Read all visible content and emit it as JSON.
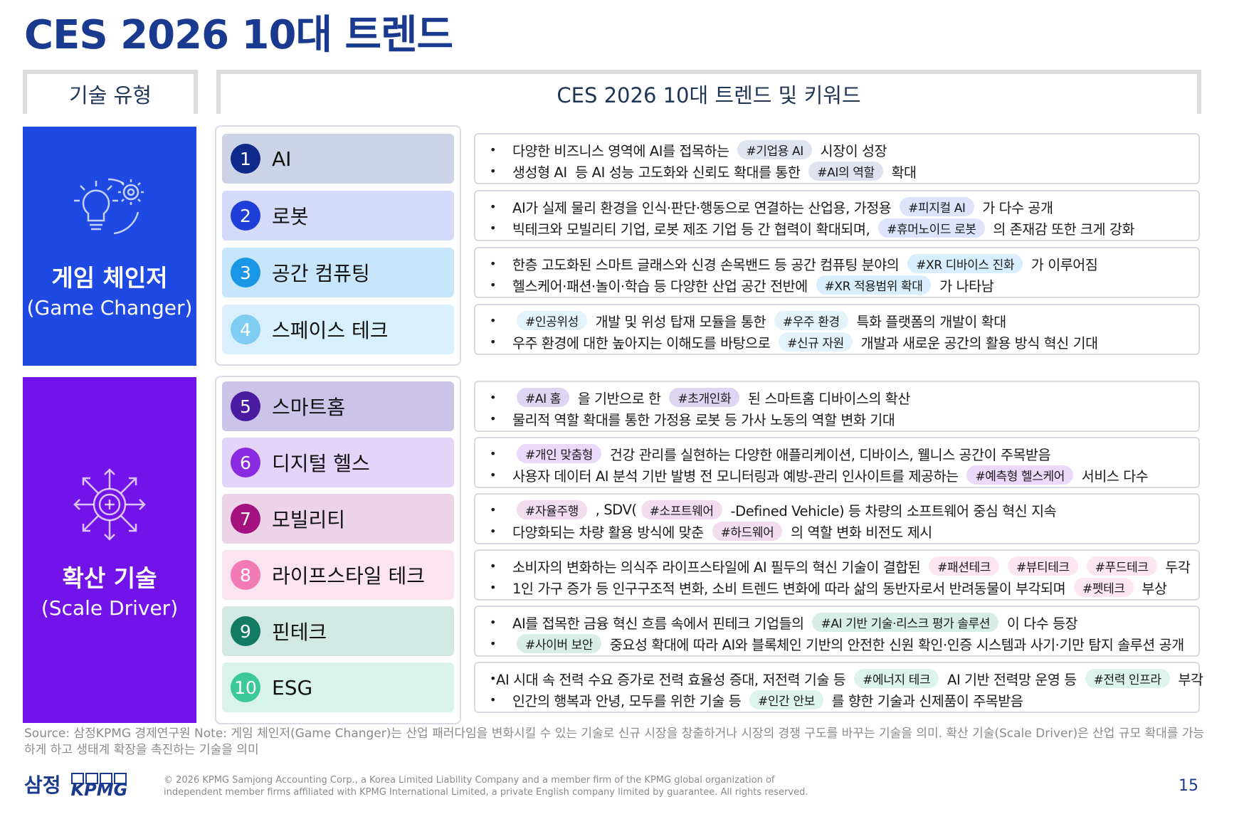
{
  "title": "CES 2026 10대 트렌드",
  "header": {
    "left": "기술 유형",
    "right": "CES 2026 10대 트렌드 및 키워드"
  },
  "groups": [
    {
      "name": "게임 체인저",
      "sub": "(Game Changer)",
      "icon": "lightbulb-gear-icon",
      "color": "#1e49e2"
    },
    {
      "name": "확산 기술",
      "sub": "(Scale Driver)",
      "icon": "expand-arrows-icon",
      "color": "#7213ea"
    }
  ],
  "trends": [
    {
      "num": "1",
      "name": "AI",
      "box_color": "#cdd3e6",
      "num_color": "#0e2a8a",
      "tag_color": "#dfe3ef",
      "lines": [
        [
          {
            "t": "다양한 비즈니스 영역에 AI를 접목하는 "
          },
          {
            "tag": "#기업용 AI"
          },
          {
            "t": " 시장이 성장"
          }
        ],
        [
          {
            "t": "생성형 AI  등 AI 성능 고도화와 신뢰도 확대를 통한 "
          },
          {
            "tag": "#AI의 역할"
          },
          {
            "t": " 확대"
          }
        ]
      ]
    },
    {
      "num": "2",
      "name": "로봇",
      "box_color": "#d3dafa",
      "num_color": "#1e3fd8",
      "tag_color": "#dde3fb",
      "lines": [
        [
          {
            "t": "AI가 실제 물리 환경을 인식·판단·행동으로 연결하는 산업용, 가정용 "
          },
          {
            "tag": "#피지컬 AI"
          },
          {
            "t": " 가 다수 공개"
          }
        ],
        [
          {
            "t": "빅테크와 모빌리티 기업, 로봇 제조 기업 등 간 협력이 확대되며, "
          },
          {
            "tag": "#휴머노이드 로봇"
          },
          {
            "t": " 의 존재감 또한 크게 강화"
          }
        ]
      ]
    },
    {
      "num": "3",
      "name": "공간 컴퓨팅",
      "box_color": "#c8e6fb",
      "num_color": "#1a96e6",
      "tag_color": "#d8eefc",
      "lines": [
        [
          {
            "t": "한층 고도화된 스마트 글래스와 신경 손목밴드 등 공간 컴퓨팅 분야의 "
          },
          {
            "tag": "#XR 디바이스 진화"
          },
          {
            "t": " 가 이루어짐"
          }
        ],
        [
          {
            "t": "헬스케어·패션·놀이·학습 등 다양한 산업 공간 전반에 "
          },
          {
            "tag": "#XR 적용범위 확대"
          },
          {
            "t": " 가 나타남"
          }
        ]
      ]
    },
    {
      "num": "4",
      "name": "스페이스 테크",
      "box_color": "#d7f0fc",
      "num_color": "#7fcdf2",
      "tag_color": "#e2f3fc",
      "lines": [
        [
          {
            "tag": "#인공위성"
          },
          {
            "t": " 개발 및 위성 탑재 모듈을 통한 "
          },
          {
            "tag": "#우주 환경"
          },
          {
            "t": " 특화 플랫폼의 개발이 확대"
          }
        ],
        [
          {
            "t": "우주 환경에 대한 높아지는 이해도를 바탕으로 "
          },
          {
            "tag": "#신규 자원"
          },
          {
            "t": " 개발과 새로운 공간의 활용 방식 혁신 기대"
          }
        ]
      ]
    },
    {
      "num": "5",
      "name": "스마트홈",
      "box_color": "#ccc3e8",
      "num_color": "#4a1aa0",
      "tag_color": "#ddd5f1",
      "lines": [
        [
          {
            "tag": "#AI 홈"
          },
          {
            "t": " 을 기반으로 한 "
          },
          {
            "tag": "#초개인화"
          },
          {
            "t": " 된 스마트홈 디바이스의 확산"
          }
        ],
        [
          {
            "t": "물리적 역할 확대를 통한 가정용 로봇 등 가사 노동의 역할 변화 기대"
          }
        ]
      ]
    },
    {
      "num": "6",
      "name": "디지털 헬스",
      "box_color": "#e3d5f9",
      "num_color": "#8a2be2",
      "tag_color": "#ead9fb",
      "lines": [
        [
          {
            "tag": "#개인 맞춤형"
          },
          {
            "t": " 건강 관리를 실현하는 다양한 애플리케이션, 디바이스, 웰니스 공간이 주목받음"
          }
        ],
        [
          {
            "t": "사용자 데이터 AI 분석 기반 발병 전 모니터링과 예방-관리 인사이트를 제공하는 "
          },
          {
            "tag": "#예측형 헬스케어"
          },
          {
            "t": " 서비스 다수"
          }
        ]
      ]
    },
    {
      "num": "7",
      "name": "모빌리티",
      "box_color": "#ecd3e8",
      "num_color": "#a3127f",
      "tag_color": "#f2dcef",
      "lines": [
        [
          {
            "tag": "#자율주행"
          },
          {
            "t": " , SDV("
          },
          {
            "tag": "#소프트웨어"
          },
          {
            "t": " -Defined Vehicle) 등 차량의 소프트웨어 중심 혁신 지속"
          }
        ],
        [
          {
            "t": "다양화되는 차량 활용 방식에 맞춘 "
          },
          {
            "tag": "#하드웨어"
          },
          {
            "t": " 의 역할 변화 비전도 제시"
          }
        ]
      ]
    },
    {
      "num": "8",
      "name": "라이프스타일 테크",
      "box_color": "#fbe3f0",
      "num_color": "#f27bb6",
      "tag_color": "#fce6f1",
      "lines": [
        [
          {
            "t": "소비자의 변화하는 의식주 라이프스타일에 AI 필두의 혁신 기술이 결합된 "
          },
          {
            "tag": "#패션테크"
          },
          {
            "tag": "#뷰티테크"
          },
          {
            "tag": "#푸드테크"
          },
          {
            "t": " 두각"
          }
        ],
        [
          {
            "t": "1인 가구 증가 등 인구구조적 변화, 소비 트렌드 변화에 따라 삶의 동반자로서 반려동물이 부각되며 "
          },
          {
            "tag": "#펫테크"
          },
          {
            "t": " 부상"
          }
        ]
      ]
    },
    {
      "num": "9",
      "name": "핀테크",
      "box_color": "#d1e9e2",
      "num_color": "#137a63",
      "tag_color": "#d7eee6",
      "lines": [
        [
          {
            "t": "AI를 접목한 금융 혁신 흐름 속에서 핀테크 기업들의 "
          },
          {
            "tag": "#AI 기반 기술·리스크 평가 솔루션"
          },
          {
            "t": " 이 다수 등장"
          }
        ],
        [
          {
            "tag": "#사이버 보안"
          },
          {
            "t": " 중요성 확대에 따라 AI와 블록체인 기반의 안전한 신원 확인·인증 시스템과 사기·기만 탐지 솔루션 공개"
          }
        ]
      ]
    },
    {
      "num": "10",
      "name": "ESG",
      "box_color": "#d8f3ea",
      "num_color": "#3cc99a",
      "tag_color": "#dcf4eb",
      "lines": [
        [
          {
            "t": "AI 시대 속 전력 수요 증가로 전력 효율성 증대, 저전력 기술 등 "
          },
          {
            "tag": "#에너지 테크"
          },
          {
            "t": " AI 기반 전력망 운영 등 "
          },
          {
            "tag": "#전력 인프라"
          },
          {
            "t": " 부각"
          }
        ],
        [
          {
            "t": "인간의 행복과 안녕, 모두를 위한 기술 등 "
          },
          {
            "tag": "#인간 안보"
          },
          {
            "t": " 를 향한 기술과 신제품이 주목받음"
          }
        ]
      ]
    }
  ],
  "source": "Source: 삼정KPMG 경제연구원 Note: 게임 체인저(Game Changer)는 산업 패러다임을 변화시킬 수 있는 기술로 신규 시장을 창출하거나 시장의 경쟁 구도를 바꾸는 기술을 의미. 확산 기술(Scale Driver)은 산업 규모 확대를 가능하게 하고 생태계 확장을 촉진하는 기술을 의미",
  "footer": {
    "logo_text": "삼정",
    "logo_brand": "KPMG",
    "copyright": "© 2026 KPMG Samjong Accounting Corp., a Korea Limited Liability Company and a member firm of the KPMG global organization of independent member firms affiliated with KPMG International Limited, a private English company limited by guarantee. All rights reserved.",
    "page": "15"
  }
}
